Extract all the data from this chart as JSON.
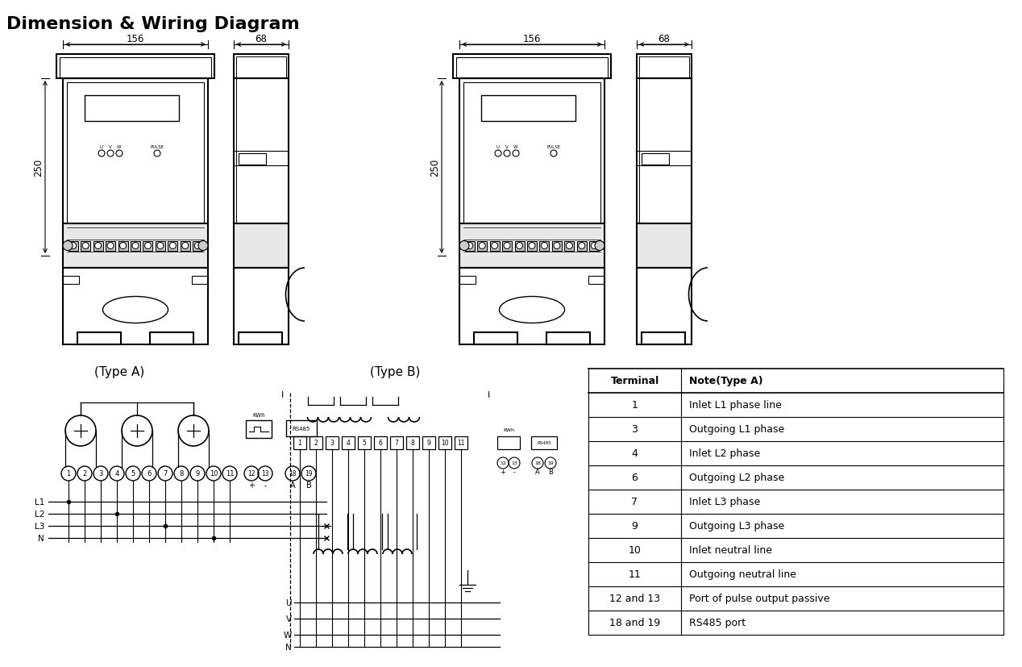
{
  "title": "Dimension & Wiring Diagram",
  "title_fontsize": 16,
  "title_fontweight": "bold",
  "bg_color": "#ffffff",
  "line_color": "#000000",
  "table_headers": [
    "Terminal",
    "Note(Type A)"
  ],
  "table_rows": [
    [
      "1",
      "Inlet L1 phase line"
    ],
    [
      "3",
      "Outgoing L1 phase"
    ],
    [
      "4",
      "Inlet L2 phase"
    ],
    [
      "6",
      "Outgoing L2 phase"
    ],
    [
      "7",
      "Inlet L3 phase"
    ],
    [
      "9",
      "Outgoing L3 phase"
    ],
    [
      "10",
      "Inlet neutral line"
    ],
    [
      "11",
      "Outgoing neutral line"
    ],
    [
      "12 and 13",
      "Port of pulse output passive"
    ],
    [
      "18 and 19",
      "RS485 port"
    ]
  ],
  "dim_156": "156",
  "dim_68": "68",
  "dim_250": "250",
  "type_a_label": "(Type A)",
  "type_b_label": "(Type B)"
}
